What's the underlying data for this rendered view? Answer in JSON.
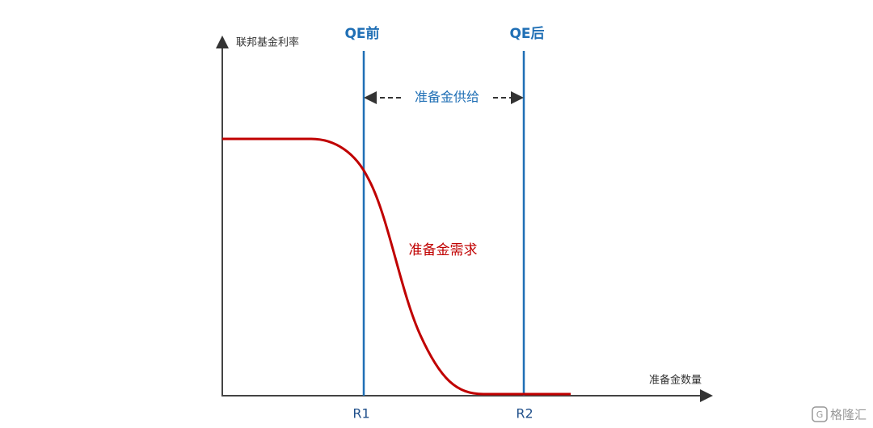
{
  "diagram": {
    "y_axis_label": "联邦基金利率",
    "x_axis_label": "准备金数量",
    "lines": [
      {
        "label": "QE前",
        "tick": "R1"
      },
      {
        "label": "QE后",
        "tick": "R2"
      }
    ],
    "supply_label": "准备金供给",
    "demand_label": "准备金需求",
    "watermark": "格隆汇"
  }
}
